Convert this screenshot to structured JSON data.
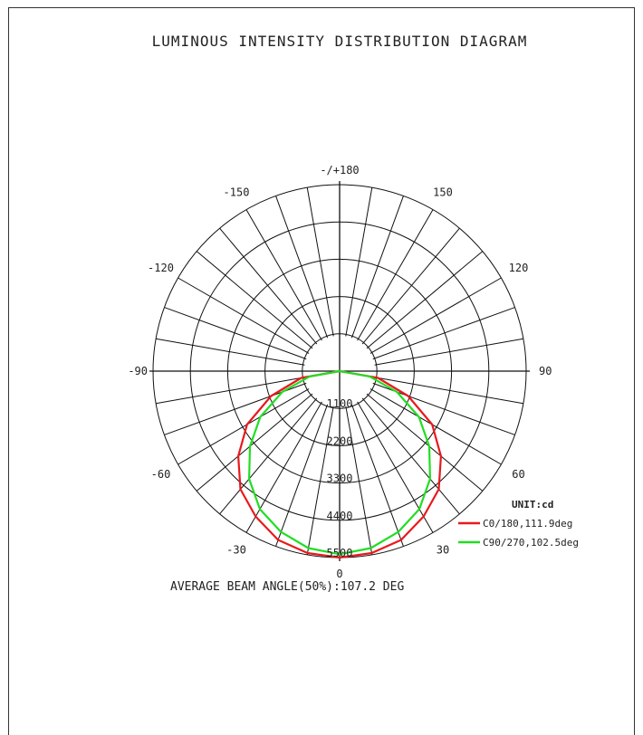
{
  "chart_data": {
    "type": "polar",
    "title": "LUMINOUS INTENSITY DISTRIBUTION DIAGRAM",
    "angle_labels": [
      {
        "deg": 180,
        "text": "-/+180"
      },
      {
        "deg": -150,
        "text": "-150"
      },
      {
        "deg": 150,
        "text": "150"
      },
      {
        "deg": -120,
        "text": "-120"
      },
      {
        "deg": 120,
        "text": "120"
      },
      {
        "deg": -90,
        "text": "-90"
      },
      {
        "deg": 90,
        "text": "90"
      },
      {
        "deg": -60,
        "text": "-60"
      },
      {
        "deg": 60,
        "text": "60"
      },
      {
        "deg": -30,
        "text": "-30"
      },
      {
        "deg": 30,
        "text": "30"
      },
      {
        "deg": 0,
        "text": "0"
      }
    ],
    "radial_ticks": [
      1100,
      2200,
      3300,
      4400,
      5500
    ],
    "radial_max": 5500,
    "unit_label": "UNIT:cd",
    "series": [
      {
        "name": "C0/180,111.9deg",
        "color": "#e8191c",
        "points": [
          [
            -90,
            0
          ],
          [
            -80,
            1150
          ],
          [
            -70,
            2150
          ],
          [
            -60,
            3150
          ],
          [
            -50,
            3900
          ],
          [
            -40,
            4550
          ],
          [
            -30,
            4950
          ],
          [
            -20,
            5300
          ],
          [
            -10,
            5450
          ],
          [
            0,
            5500
          ],
          [
            10,
            5450
          ],
          [
            20,
            5300
          ],
          [
            30,
            4950
          ],
          [
            40,
            4550
          ],
          [
            50,
            3900
          ],
          [
            60,
            3150
          ],
          [
            70,
            2150
          ],
          [
            80,
            1150
          ],
          [
            90,
            0
          ]
        ]
      },
      {
        "name": "C90/270,102.5deg",
        "color": "#22dd22",
        "points": [
          [
            -90,
            0
          ],
          [
            -80,
            900
          ],
          [
            -70,
            1800
          ],
          [
            -60,
            2700
          ],
          [
            -50,
            3450
          ],
          [
            -40,
            4150
          ],
          [
            -30,
            4700
          ],
          [
            -20,
            5050
          ],
          [
            -10,
            5300
          ],
          [
            0,
            5400
          ],
          [
            10,
            5300
          ],
          [
            20,
            5050
          ],
          [
            30,
            4700
          ],
          [
            40,
            4150
          ],
          [
            50,
            3450
          ],
          [
            60,
            2700
          ],
          [
            70,
            1800
          ],
          [
            80,
            900
          ],
          [
            90,
            0
          ]
        ]
      }
    ],
    "annotation": "AVERAGE BEAM ANGLE(50%):107.2 DEG"
  }
}
